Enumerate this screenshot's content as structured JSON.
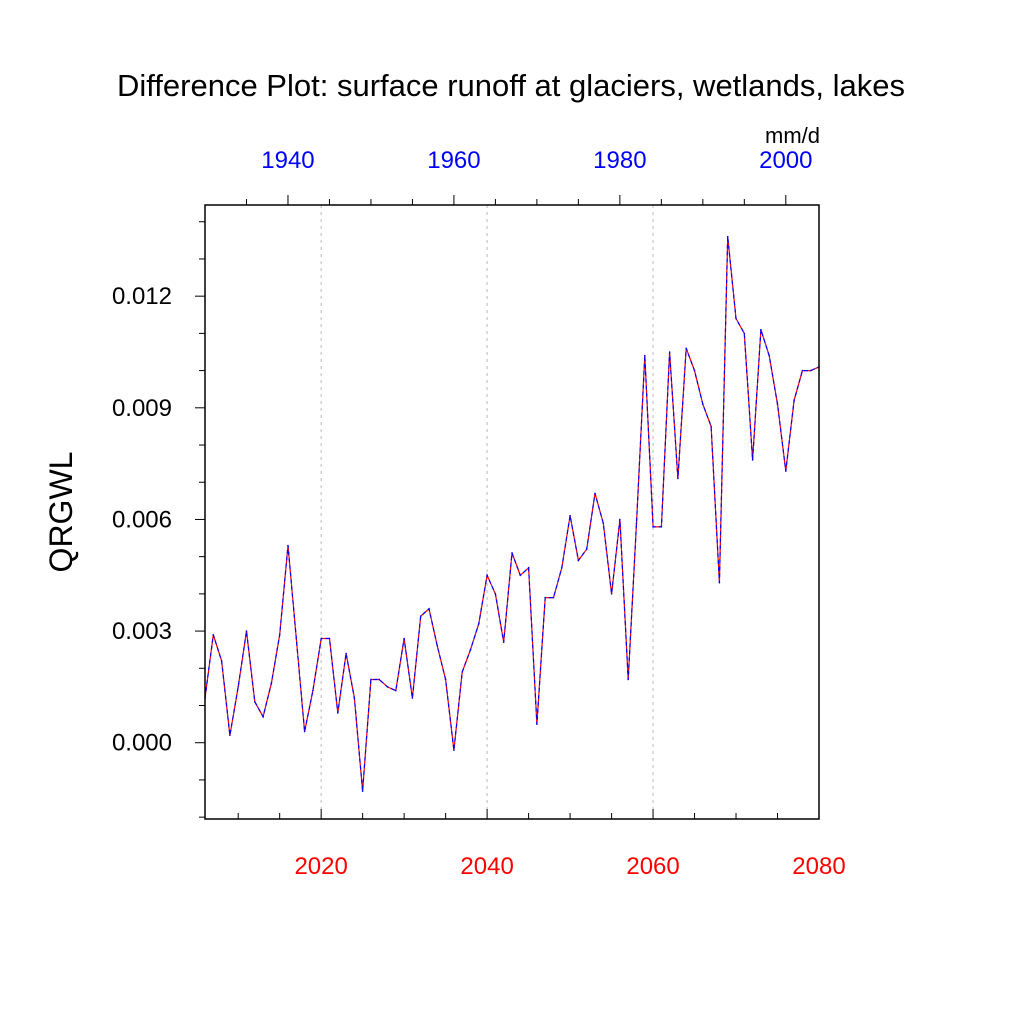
{
  "chart_data": {
    "type": "line",
    "title": "Difference Plot: surface runoff at glaciers, wetlands, lakes",
    "ylabel": "QRGWL",
    "units": "mm/d",
    "bottom_axis": {
      "range": [
        2006,
        2080
      ],
      "ticks": [
        2020,
        2040,
        2060,
        2080
      ],
      "tick_labels": [
        "2020",
        "2040",
        "2060",
        "2080"
      ],
      "color": "#ff0000"
    },
    "top_axis": {
      "range": [
        1930,
        2004
      ],
      "ticks": [
        1940,
        1960,
        1980,
        2000
      ],
      "tick_labels": [
        "1940",
        "1960",
        "1980",
        "2000"
      ],
      "color": "#0000ff"
    },
    "y_axis": {
      "range": [
        -0.00205,
        0.01445
      ],
      "ticks": [
        0.0,
        0.003,
        0.006,
        0.009,
        0.012
      ],
      "tick_labels": [
        "0.000",
        "0.003",
        "0.006",
        "0.009",
        "0.012"
      ]
    },
    "gridlines_x": [
      2020,
      2040,
      2060
    ],
    "series": [
      {
        "name": "difference",
        "line_style": "dashed",
        "colors": [
          "#ff0000",
          "#0000ff"
        ],
        "x": [
          2006,
          2007,
          2008,
          2009,
          2010,
          2011,
          2012,
          2013,
          2014,
          2015,
          2016,
          2017,
          2018,
          2019,
          2020,
          2021,
          2022,
          2023,
          2024,
          2025,
          2026,
          2027,
          2028,
          2029,
          2030,
          2031,
          2032,
          2033,
          2034,
          2035,
          2036,
          2037,
          2038,
          2039,
          2040,
          2041,
          2042,
          2043,
          2044,
          2045,
          2046,
          2047,
          2048,
          2049,
          2050,
          2051,
          2052,
          2053,
          2054,
          2055,
          2056,
          2057,
          2058,
          2059,
          2060,
          2061,
          2062,
          2063,
          2064,
          2065,
          2066,
          2067,
          2068,
          2069,
          2070,
          2071,
          2072,
          2073,
          2074,
          2075,
          2076,
          2077,
          2078,
          2079,
          2080
        ],
        "values": [
          0.0012,
          0.0029,
          0.0022,
          0.0002,
          0.0015,
          0.003,
          0.0011,
          0.0007,
          0.0016,
          0.0029,
          0.0053,
          0.0028,
          0.0003,
          0.0014,
          0.0028,
          0.0028,
          0.0008,
          0.0024,
          0.0012,
          -0.0013,
          0.0017,
          0.0017,
          0.0015,
          0.0014,
          0.0028,
          0.0012,
          0.0034,
          0.0036,
          0.0026,
          0.0017,
          -0.0002,
          0.0019,
          0.0025,
          0.0032,
          0.0045,
          0.004,
          0.0027,
          0.0051,
          0.0045,
          0.0047,
          0.0005,
          0.0039,
          0.0039,
          0.0047,
          0.0061,
          0.0049,
          0.0052,
          0.0067,
          0.0059,
          0.004,
          0.006,
          0.0017,
          0.0059,
          0.0104,
          0.0058,
          0.0058,
          0.0105,
          0.0071,
          0.0106,
          0.01,
          0.0091,
          0.0085,
          0.0043,
          0.0136,
          0.0114,
          0.011,
          0.0076,
          0.0111,
          0.0104,
          0.0091,
          0.0073,
          0.0092,
          0.01,
          0.01,
          0.0101
        ]
      }
    ]
  }
}
